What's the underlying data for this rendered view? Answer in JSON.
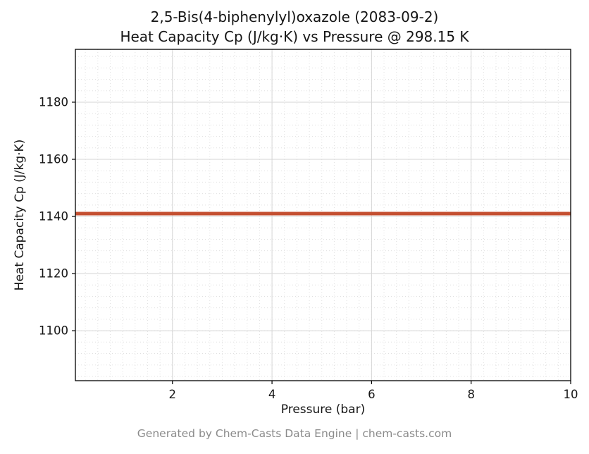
{
  "title_line1": "2,5-Bis(4-biphenylyl)oxazole (2083-09-2)",
  "title_line2": "Heat Capacity Cp (J/kg·K) vs Pressure @ 298.15 K",
  "footer": "Generated by Chem-Casts Data Engine | chem-casts.com",
  "chart_data": {
    "type": "line",
    "title": "2,5-Bis(4-biphenylyl)oxazole (2083-09-2) — Heat Capacity Cp (J/kg·K) vs Pressure @ 298.15 K",
    "xlabel": "Pressure (bar)",
    "ylabel": "Heat Capacity Cp (J/kg·K)",
    "xlim": [
      0.05,
      10
    ],
    "ylim": [
      1082.5,
      1198.5
    ],
    "xticks": [
      2,
      4,
      6,
      8,
      10
    ],
    "yticks": [
      1100,
      1120,
      1140,
      1160,
      1180
    ],
    "x_minor_step": 0.25,
    "y_minor_step": 4,
    "grid": true,
    "legend": "none",
    "series": [
      {
        "name": "Heat Capacity Cp",
        "x": [
          0.05,
          10
        ],
        "y": [
          1141,
          1141
        ],
        "color": "#c44f30",
        "line_width": 5
      }
    ]
  },
  "colors": {
    "major_grid": "#d6d6d6",
    "minor_grid": "#e0e0e0",
    "axis": "#000000",
    "tick_label": "#151515"
  }
}
